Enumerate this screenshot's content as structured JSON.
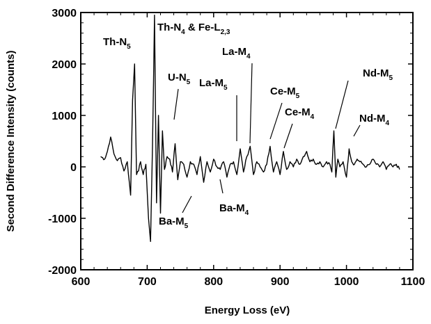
{
  "chart_data": {
    "type": "line",
    "xlabel": "Energy Loss (eV)",
    "ylabel": "Second Difference Intensity (counts)",
    "xlim": [
      600,
      1100
    ],
    "ylim": [
      -2000,
      3000
    ],
    "x_ticks": [
      600,
      700,
      800,
      900,
      1000,
      1100
    ],
    "y_ticks": [
      -2000,
      -1000,
      0,
      1000,
      2000,
      3000
    ],
    "x_tick_labels": [
      "600",
      "700",
      "800",
      "900",
      "1000",
      "1100"
    ],
    "y_tick_labels": [
      "-2000",
      "-1000",
      "0",
      "1000",
      "2000",
      "3000"
    ],
    "grid": false,
    "line_color": "#000000",
    "series": [
      {
        "x": [
          630,
          636,
          640,
          645,
          650,
          655,
          660,
          665,
          670,
          675,
          678,
          681,
          684,
          687,
          690,
          694,
          698,
          702,
          705,
          708,
          711,
          714,
          717,
          720,
          723,
          726,
          730,
          734,
          738,
          742,
          746,
          750,
          755,
          760,
          765,
          770,
          775,
          780,
          785,
          790,
          795,
          800,
          805,
          810,
          815,
          820,
          825,
          830,
          835,
          840,
          845,
          850,
          855,
          860,
          865,
          870,
          875,
          880,
          885,
          890,
          895,
          900,
          905,
          910,
          915,
          920,
          925,
          930,
          935,
          940,
          945,
          950,
          955,
          960,
          965,
          970,
          975,
          978,
          981,
          984,
          987,
          990,
          995,
          1000,
          1004,
          1008,
          1012,
          1016,
          1020,
          1025,
          1030,
          1035,
          1040,
          1045,
          1050,
          1055,
          1060,
          1065,
          1070,
          1075,
          1080
        ],
        "y": [
          200,
          150,
          300,
          580,
          250,
          120,
          180,
          -80,
          100,
          -550,
          1300,
          2000,
          -150,
          -80,
          100,
          -150,
          50,
          -1000,
          -1450,
          400,
          2950,
          -700,
          1000,
          -900,
          700,
          -50,
          200,
          150,
          -100,
          450,
          -250,
          100,
          50,
          -200,
          100,
          50,
          -150,
          200,
          -300,
          100,
          -100,
          150,
          0,
          -50,
          100,
          -200,
          50,
          100,
          -150,
          350,
          -100,
          200,
          400,
          -150,
          100,
          0,
          -100,
          50,
          400,
          -100,
          100,
          -150,
          300,
          -50,
          100,
          0,
          150,
          50,
          200,
          300,
          100,
          150,
          50,
          100,
          0,
          100,
          50,
          -100,
          700,
          -200,
          150,
          0,
          100,
          -200,
          350,
          100,
          50,
          150,
          100,
          50,
          0,
          50,
          150,
          50,
          0,
          100,
          -50,
          50,
          0,
          50,
          -50
        ]
      }
    ],
    "annotations": [
      {
        "main": "Th-N",
        "sub": "5",
        "tail": "",
        "tail_sub": ""
      },
      {
        "main": "Th-N",
        "sub": "4",
        "tail": " & Fe-L",
        "tail_sub": "2,3"
      },
      {
        "main": "U-N",
        "sub": "5",
        "tail": "",
        "tail_sub": ""
      },
      {
        "main": "La-M",
        "sub": "4",
        "tail": "",
        "tail_sub": ""
      },
      {
        "main": "La-M",
        "sub": "5",
        "tail": "",
        "tail_sub": ""
      },
      {
        "main": "Ce-M",
        "sub": "5",
        "tail": "",
        "tail_sub": ""
      },
      {
        "main": "Ce-M",
        "sub": "4",
        "tail": "",
        "tail_sub": ""
      },
      {
        "main": "Nd-M",
        "sub": "5",
        "tail": "",
        "tail_sub": ""
      },
      {
        "main": "Nd-M",
        "sub": "4",
        "tail": "",
        "tail_sub": ""
      },
      {
        "main": "Ba-M",
        "sub": "5",
        "tail": "",
        "tail_sub": ""
      },
      {
        "main": "Ba-M",
        "sub": "4",
        "tail": "",
        "tail_sub": ""
      }
    ]
  }
}
